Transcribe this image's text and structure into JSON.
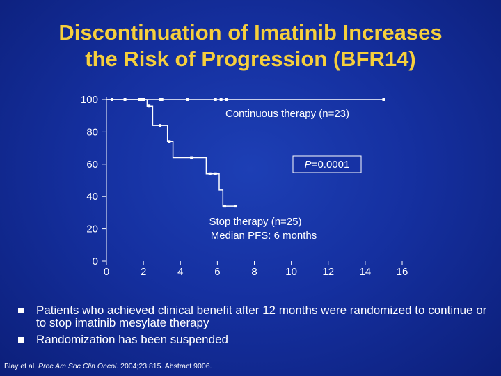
{
  "slide": {
    "title_line1": "Discontinuation of Imatinib Increases",
    "title_line2": "the Risk of Progression (BFR14)"
  },
  "chart_data": {
    "type": "line",
    "subtype": "kaplan-meier",
    "title": "",
    "xlabel": "",
    "ylabel": "",
    "xlim": [
      0,
      16
    ],
    "ylim": [
      0,
      100
    ],
    "x_ticks": [
      "0",
      "2",
      "4",
      "6",
      "8",
      "10",
      "12",
      "14",
      "16"
    ],
    "y_ticks": [
      "0",
      "20",
      "40",
      "60",
      "80",
      "100"
    ],
    "grid": false,
    "colors": {
      "line": "#ffffff",
      "text": "#ffffff",
      "title": "#f6cf3c"
    },
    "series": [
      {
        "name": "Continuous therapy (n=23)",
        "steps": [
          [
            0,
            100
          ],
          [
            15,
            100
          ]
        ],
        "censored_x": [
          0.3,
          1.0,
          1.8,
          1.9,
          2.0,
          2.9,
          3.0,
          4.4,
          5.9,
          6.2,
          6.5,
          15.0
        ]
      },
      {
        "name": "Stop therapy (n=25)",
        "steps": [
          [
            0,
            100
          ],
          [
            2.2,
            100
          ],
          [
            2.2,
            96
          ],
          [
            2.5,
            96
          ],
          [
            2.5,
            84
          ],
          [
            3.3,
            84
          ],
          [
            3.3,
            74
          ],
          [
            3.6,
            74
          ],
          [
            3.6,
            64
          ],
          [
            5.4,
            64
          ],
          [
            5.4,
            54
          ],
          [
            6.1,
            54
          ],
          [
            6.1,
            44
          ],
          [
            6.3,
            44
          ],
          [
            6.3,
            34
          ],
          [
            7.0,
            34
          ]
        ],
        "censored_x": [
          2.3,
          2.9,
          3.4,
          4.6,
          5.6,
          5.9,
          6.4,
          7.0
        ]
      }
    ],
    "annotations": {
      "continuous_label": "Continuous therapy (n=23)",
      "p_value_label": "P",
      "p_value": "=0.0001",
      "stop_label": "Stop therapy (n=25)",
      "median_label": "Median PFS: 6 months"
    }
  },
  "bullets": [
    "Patients who achieved clinical benefit after 12 months were randomized to continue or to stop imatinib mesylate therapy",
    "Randomization has been suspended"
  ],
  "citation": {
    "authors": "Blay et al. ",
    "journal": "Proc Am Soc Clin Oncol",
    "details": ". 2004;23:815. Abstract 9006."
  }
}
